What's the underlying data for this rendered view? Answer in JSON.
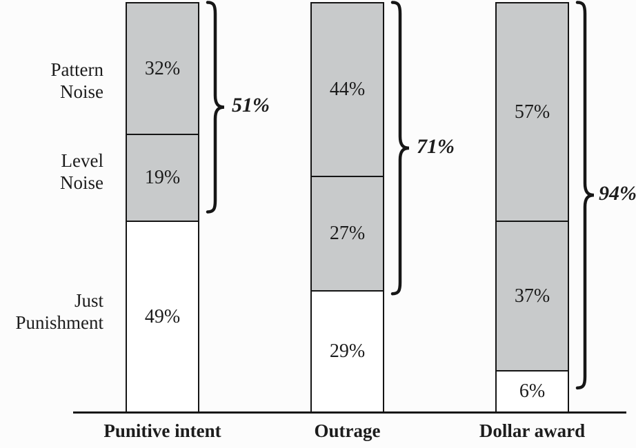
{
  "colors": {
    "noise_fill": "#c8cacb",
    "just_fill": "#ffffff",
    "line": "#141414",
    "text": "#1c1c1c",
    "background": "#fcfcfc"
  },
  "row_labels": [
    {
      "line1": "Pattern",
      "line2": "Noise"
    },
    {
      "line1": "Level",
      "line2": "Noise"
    },
    {
      "line1": "Just",
      "line2": "Punishment"
    }
  ],
  "chart_data": {
    "type": "bar",
    "subtype": "100-percent-stacked-vertical",
    "title": "",
    "xlabel": "",
    "ylabel": "",
    "ylim": [
      0,
      100
    ],
    "grid": false,
    "legend_position": "row labels at left of first bar",
    "categories": [
      "Punitive intent",
      "Outrage",
      "Dollar award"
    ],
    "series": [
      {
        "name": "Pattern Noise",
        "values": [
          32,
          44,
          57
        ],
        "fill": "#c8cacb"
      },
      {
        "name": "Level Noise",
        "values": [
          19,
          27,
          37
        ],
        "fill": "#c8cacb"
      },
      {
        "name": "Just Punishment",
        "values": [
          49,
          29,
          6
        ],
        "fill": "#ffffff"
      }
    ],
    "brace_annotation_meaning": "total noise (pattern + level)",
    "bars": [
      {
        "category": "Punitive intent",
        "segments": [
          {
            "name": "Pattern Noise",
            "label": "32%",
            "value": 32
          },
          {
            "name": "Level Noise",
            "label": "19%",
            "value": 19
          },
          {
            "name": "Just Punishment",
            "label": "49%",
            "value": 49
          }
        ],
        "brace": {
          "label": "51%",
          "value": 51
        }
      },
      {
        "category": "Outrage",
        "segments": [
          {
            "name": "Pattern Noise",
            "label": "44%",
            "value": 44
          },
          {
            "name": "Level Noise",
            "label": "27%",
            "value": 27
          },
          {
            "name": "Just Punishment",
            "label": "29%",
            "value": 29
          }
        ],
        "brace": {
          "label": "71%",
          "value": 71
        }
      },
      {
        "category": "Dollar award",
        "segments": [
          {
            "name": "Pattern Noise",
            "label": "57%",
            "value": 57
          },
          {
            "name": "Level Noise",
            "label": "37%",
            "value": 37
          },
          {
            "name": "Just Punishment",
            "label": "6%",
            "value": 6
          }
        ],
        "brace": {
          "label": "94%",
          "value": 94
        }
      }
    ]
  }
}
